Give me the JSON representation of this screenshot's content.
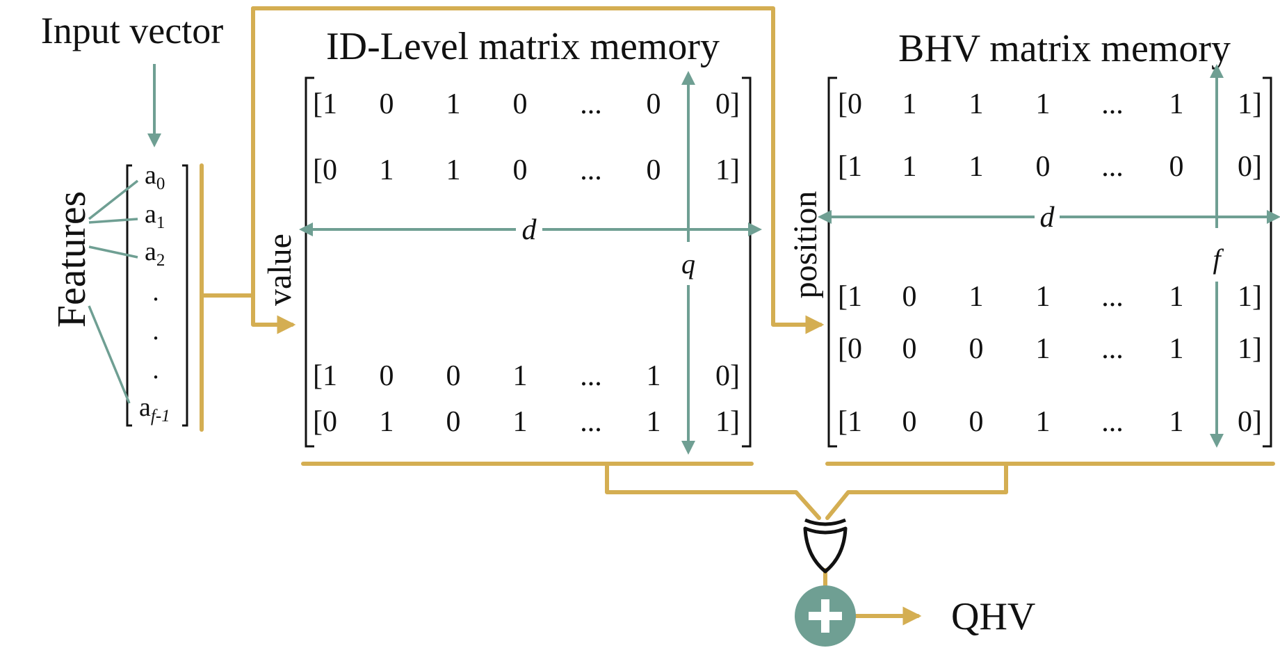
{
  "colors": {
    "gold": "#D4AE52",
    "teal": "#6F9F93",
    "ink": "#111111"
  },
  "labels": {
    "input_vector": "Input vector",
    "features": "Features",
    "id_level_title": "ID-Level matrix memory",
    "bhv_title": "BHV matrix memory",
    "value": "value",
    "position": "position",
    "d": "d",
    "q": "q",
    "f": "f",
    "qhv": "QHV"
  },
  "features": [
    "a0",
    "a1",
    "a2",
    ".",
    ".",
    ".",
    "af-1"
  ],
  "id_level_rows": [
    [
      "[1",
      "0",
      "1",
      "0",
      "...",
      "0",
      "0]"
    ],
    [
      "[0",
      "1",
      "1",
      "0",
      "...",
      "0",
      "1]"
    ],
    [
      "[1",
      "0",
      "0",
      "1",
      "...",
      "1",
      "0]"
    ],
    [
      "[0",
      "1",
      "0",
      "1",
      "...",
      "1",
      "1]"
    ]
  ],
  "bhv_rows": [
    [
      "[0",
      "1",
      "1",
      "1",
      "...",
      "1",
      "1]"
    ],
    [
      "[1",
      "1",
      "1",
      "0",
      "...",
      "0",
      "0]"
    ],
    [
      "[1",
      "0",
      "1",
      "1",
      "...",
      "1",
      "1]"
    ],
    [
      "[0",
      "0",
      "0",
      "1",
      "...",
      "1",
      "1]"
    ],
    [
      "[1",
      "0",
      "0",
      "1",
      "...",
      "1",
      "0]"
    ]
  ],
  "icons": {
    "xor": "xor-gate-icon",
    "adder": "plus-circle-icon"
  }
}
